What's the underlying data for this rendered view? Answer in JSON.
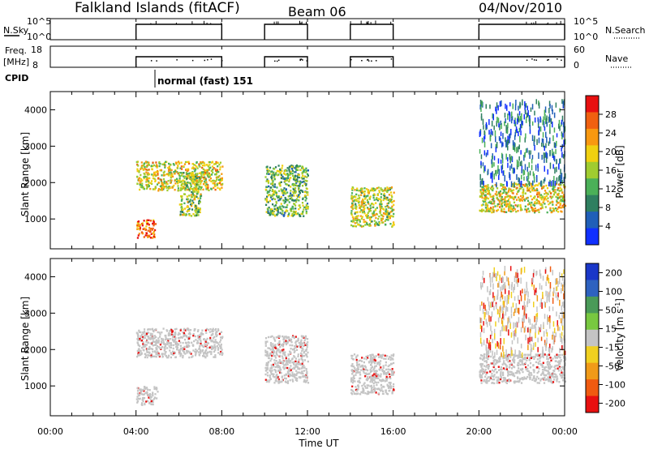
{
  "header": {
    "station": "Falkland Islands (fitACF)",
    "beam": "Beam 06",
    "date": "04/Nov/2010"
  },
  "panels": {
    "nsky": {
      "label": "N.Sky",
      "ticks": [
        "10^5",
        "10^0"
      ]
    },
    "nsearch": {
      "label": "N.Search",
      "ticks": [
        "10^5",
        "10^0"
      ]
    },
    "freq": {
      "label1": "Freq.",
      "label2": "[MHz]",
      "ticks": [
        "18",
        "8"
      ]
    },
    "nave": {
      "label": "Nave",
      "ticks": [
        "60",
        "0"
      ]
    },
    "cpid": {
      "label": "CPID",
      "mode": "normal (fast) 151"
    }
  },
  "colors": {
    "power": [
      "#1030ff",
      "#205fb8",
      "#2f7f60",
      "#4bb058",
      "#a0cc30",
      "#f0d010",
      "#f89810",
      "#f06010",
      "#e81010"
    ],
    "velocity": [
      "#1a37c8",
      "#2e62c0",
      "#4a9a58",
      "#78c840",
      "#c4c4c4",
      "#f0d020",
      "#f09a18",
      "#f05a10",
      "#e81010"
    ],
    "background": "#ffffff",
    "ground_scatter": "#c4c4c4"
  },
  "chart_data": [
    {
      "type": "heatmap",
      "name": "power",
      "ylabel": "Slant Range [km]",
      "xlim": [
        0,
        24
      ],
      "ylim": [
        180,
        4500
      ],
      "yticks": [
        "1000",
        "2000",
        "3000",
        "4000"
      ],
      "colorbar": {
        "label": "Power [dB]",
        "ticks": [
          "4",
          "8",
          "12",
          "16",
          "20",
          "24",
          "28"
        ],
        "range": [
          0,
          30
        ]
      },
      "data_windows_hours": [
        [
          4,
          8
        ],
        [
          10,
          12
        ],
        [
          14,
          16
        ],
        [
          20,
          24
        ]
      ],
      "regions": [
        {
          "x": [
            4.0,
            8.0
          ],
          "y": [
            1800,
            2600
          ],
          "level": 18
        },
        {
          "x": [
            4.0,
            4.9
          ],
          "y": [
            500,
            1000
          ],
          "level": 26
        },
        {
          "x": [
            6.0,
            7.0
          ],
          "y": [
            1100,
            2300
          ],
          "level": 14
        },
        {
          "x": [
            10.0,
            12.0
          ],
          "y": [
            1100,
            2500
          ],
          "level": 12
        },
        {
          "x": [
            14.0,
            16.0
          ],
          "y": [
            800,
            1900
          ],
          "level": 16
        },
        {
          "x": [
            20.0,
            24.0
          ],
          "y": [
            1200,
            2000
          ],
          "level": 18
        },
        {
          "x": [
            20.0,
            24.0
          ],
          "y": [
            2000,
            4300
          ],
          "level": 6
        }
      ]
    },
    {
      "type": "heatmap",
      "name": "velocity",
      "ylabel": "Slant Range [km]",
      "xlabel": "Time UT",
      "xlim": [
        0,
        24
      ],
      "ylim": [
        180,
        4500
      ],
      "xticks": [
        "00:00",
        "04:00",
        "08:00",
        "12:00",
        "16:00",
        "20:00",
        "00:00"
      ],
      "yticks": [
        "1000",
        "2000",
        "3000",
        "4000"
      ],
      "colorbar": {
        "label": "Velocity [m s^-1]",
        "ticks": [
          "200",
          "100",
          "50",
          "15",
          "-15",
          "-50",
          "-100",
          "-200"
        ]
      },
      "regions": [
        {
          "x": [
            4.0,
            8.0
          ],
          "y": [
            1800,
            2600
          ],
          "level": "ground scatter"
        },
        {
          "x": [
            4.0,
            5.0
          ],
          "y": [
            500,
            1000
          ],
          "level": "ground scatter"
        },
        {
          "x": [
            10.0,
            12.0
          ],
          "y": [
            1100,
            2400
          ],
          "level": "ground scatter"
        },
        {
          "x": [
            14.0,
            16.0
          ],
          "y": [
            800,
            1900
          ],
          "level": "ground scatter"
        },
        {
          "x": [
            20.0,
            24.0
          ],
          "y": [
            1100,
            1900
          ],
          "level": "ground scatter"
        },
        {
          "x": [
            20.0,
            24.0
          ],
          "y": [
            1900,
            4300
          ],
          "level": "mixed"
        }
      ]
    }
  ]
}
